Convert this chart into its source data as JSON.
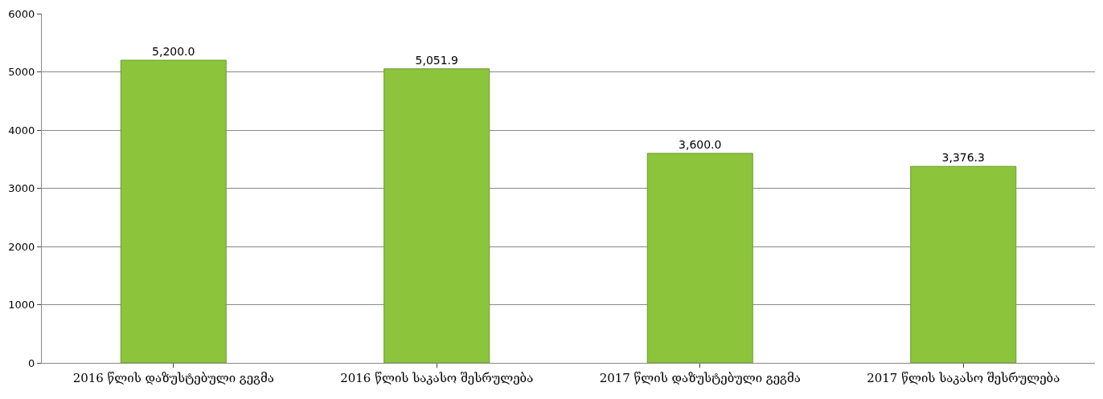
{
  "chart_data": {
    "type": "bar",
    "categories": [
      "2016 წლის დაზუსტებული გეგმა",
      "2016 წლის საკასო შესრულება",
      "2017 წლის დაზუსტებული გეგმა",
      "2017 წლის საკასო შესრულება"
    ],
    "values": [
      5200.0,
      5051.9,
      3600.0,
      3376.3
    ],
    "value_labels": [
      "5,200.0",
      "5,051.9",
      "3,600.0",
      "3,376.3"
    ],
    "color": "#8cc43c",
    "ylim": [
      0,
      6000
    ],
    "yticks": [
      0,
      1000,
      2000,
      3000,
      4000,
      5000,
      6000
    ],
    "grid": "y",
    "legend": false
  }
}
